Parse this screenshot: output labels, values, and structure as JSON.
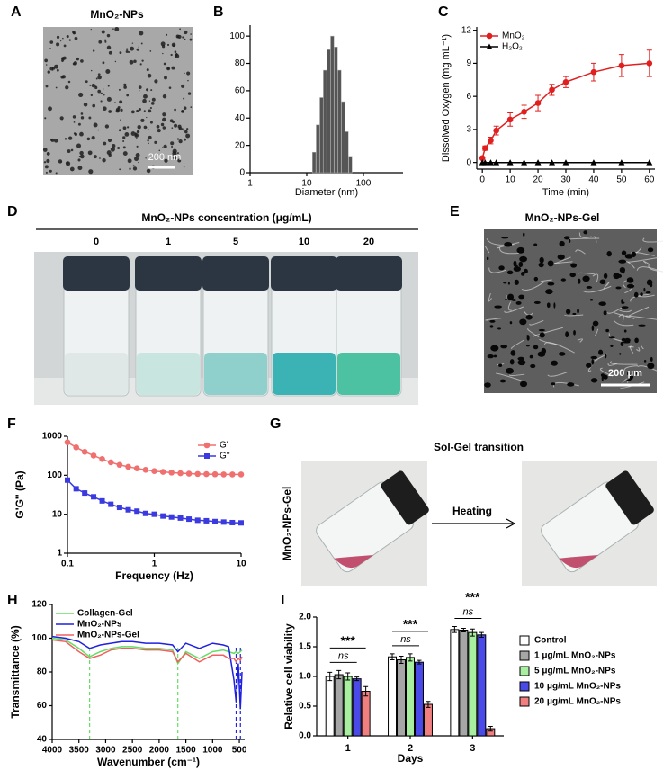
{
  "panel_letters": [
    "A",
    "B",
    "C",
    "D",
    "E",
    "F",
    "G",
    "H",
    "I"
  ],
  "photos": {
    "A": {
      "title": "MnO₂-NPs",
      "scale_bar": "200 nm"
    },
    "D": {
      "title": "MnO₂-NPs concentration (μg/mL)",
      "concentrations": [
        "0",
        "1",
        "5",
        "10",
        "20"
      ]
    },
    "E": {
      "title": "MnO₂-NPs-Gel",
      "scale_bar": "200 μm"
    },
    "G": {
      "title": "Sol-Gel transition",
      "side_label": "MnO₂-NPs-Gel",
      "arrow_label": "Heating"
    }
  },
  "chart_data": [
    {
      "type": "bar",
      "xlabel": "Diameter (nm)",
      "x": [
        13.5,
        15.7,
        18.2,
        21,
        24.4,
        28.2,
        32.7,
        37.8,
        43.8,
        50.7,
        58.8
      ],
      "values": [
        15,
        35,
        55,
        75,
        90,
        100,
        92,
        75,
        52,
        30,
        12
      ],
      "color": "#555555",
      "xlog": true,
      "xlim": [
        1,
        500
      ],
      "xticks": [
        1,
        10,
        100
      ],
      "ylim": [
        0,
        108
      ],
      "yticks": [
        0,
        20,
        40,
        60,
        80,
        100
      ]
    },
    {
      "type": "line",
      "xlabel": "Time (min)",
      "ylabel": "Dissolved Oxygen (mg mL⁻¹)",
      "x": [
        0,
        1,
        3,
        5,
        10,
        15,
        20,
        25,
        30,
        40,
        50,
        60
      ],
      "series": [
        {
          "name": "MnO₂",
          "color": "#e02020",
          "marker": "circle",
          "values": [
            0.4,
            1.3,
            2.0,
            2.9,
            3.9,
            4.6,
            5.4,
            6.6,
            7.3,
            8.2,
            8.8,
            9.0
          ],
          "errors": [
            0.1,
            0.2,
            0.3,
            0.4,
            0.6,
            0.6,
            0.7,
            0.5,
            0.5,
            0.8,
            1.0,
            1.2
          ]
        },
        {
          "name": "H₂O₂",
          "color": "#000000",
          "marker": "triangle",
          "values": [
            0,
            0,
            0,
            0,
            0,
            0,
            0,
            0,
            0,
            0,
            0,
            0
          ]
        }
      ],
      "xlim": [
        -2,
        62
      ],
      "xticks": [
        0,
        10,
        20,
        30,
        40,
        50,
        60
      ],
      "ylim": [
        -0.6,
        12.3
      ],
      "yticks": [
        0,
        3,
        6,
        9,
        12
      ],
      "legend": "upper left"
    },
    {
      "type": "line",
      "xlabel": "Frequency (Hz)",
      "ylabel": "G'G'' (Pa)",
      "x": [
        0.1,
        0.126,
        0.158,
        0.2,
        0.251,
        0.316,
        0.398,
        0.501,
        0.631,
        0.794,
        1,
        1.26,
        1.58,
        2,
        2.51,
        3.16,
        3.98,
        5.01,
        6.31,
        7.94,
        10
      ],
      "series": [
        {
          "name": "G'",
          "color": "#f07070",
          "marker": "circle",
          "values": [
            700,
            520,
            400,
            320,
            260,
            215,
            185,
            165,
            150,
            138,
            128,
            122,
            117,
            113,
            110,
            108,
            107,
            106,
            105,
            105,
            105
          ]
        },
        {
          "name": "G''",
          "color": "#3a3ae0",
          "marker": "square",
          "values": [
            75,
            45,
            35,
            28,
            22,
            18,
            15,
            13,
            12,
            10.5,
            10,
            9,
            8.5,
            8,
            7.5,
            7,
            6.8,
            6.5,
            6.3,
            6.1,
            6
          ]
        }
      ],
      "xlog": true,
      "ylog": true,
      "xlim": [
        0.1,
        10
      ],
      "xticks": [
        0.1,
        1,
        10
      ],
      "ylim": [
        1,
        1000
      ],
      "yticks": [
        1,
        10,
        100,
        1000
      ],
      "legend": "upper right"
    },
    {
      "type": "line",
      "xlabel": "Wavenumber (cm⁻¹)",
      "ylabel": "Transmittance (%)",
      "x": [
        4000,
        3750,
        3500,
        3300,
        3100,
        2900,
        2700,
        2500,
        2250,
        2000,
        1750,
        1650,
        1500,
        1250,
        1000,
        800,
        700,
        600,
        560,
        520,
        480,
        450
      ],
      "series": [
        {
          "name": "Collagen-Gel",
          "color": "#66dd66",
          "marker": "none",
          "values": [
            100,
            99,
            94,
            89,
            92,
            94,
            95,
            95,
            94,
            94,
            93,
            85,
            92,
            88,
            92,
            93,
            92,
            91,
            92,
            91,
            92,
            93
          ]
        },
        {
          "name": "MnO₂-NPs",
          "color": "#2020e0",
          "marker": "none",
          "values": [
            101,
            100,
            98,
            94,
            96,
            97,
            98,
            98,
            97,
            97,
            96,
            92,
            97,
            94,
            97,
            96,
            95,
            75,
            62,
            85,
            58,
            80
          ]
        },
        {
          "name": "MnO₂-NPs-Gel",
          "color": "#f06060",
          "marker": "none",
          "values": [
            99,
            98,
            92,
            88,
            90,
            93,
            94,
            94,
            93,
            93,
            92,
            86,
            91,
            86,
            90,
            90,
            88,
            88,
            86,
            88,
            87,
            89
          ]
        }
      ],
      "vlines": [
        {
          "value": 3300,
          "color": "#66dd66"
        },
        {
          "value": 1650,
          "color": "#66dd66"
        },
        {
          "value": 560,
          "color": "#2020e0"
        },
        {
          "value": 480,
          "color": "#2020e0"
        }
      ],
      "xlim": [
        4000,
        400
      ],
      "xticks": [
        4000,
        3500,
        3000,
        2500,
        2000,
        1500,
        1000,
        500
      ],
      "ylim": [
        40,
        120
      ],
      "yticks": [
        40,
        60,
        80,
        100,
        120
      ],
      "legend": "upper left"
    },
    {
      "type": "bar",
      "xlabel": "Days",
      "ylabel": "Relative cell viability",
      "categories": [
        "1",
        "2",
        "3"
      ],
      "series": [
        {
          "name": "Control",
          "color": "#ffffff",
          "values": [
            1.0,
            1.33,
            1.79
          ],
          "errors": [
            0.07,
            0.05,
            0.05
          ]
        },
        {
          "name": "1 μg/mL MnO₂-NPs",
          "color": "#a6a6a6",
          "values": [
            1.03,
            1.28,
            1.78
          ],
          "errors": [
            0.07,
            0.06,
            0.03
          ]
        },
        {
          "name": "5 μg/mL MnO₂-NPs",
          "color": "#a8f0a0",
          "values": [
            1.0,
            1.32,
            1.74
          ],
          "errors": [
            0.06,
            0.06,
            0.06
          ]
        },
        {
          "name": "10 μg/mL MnO₂-NPs",
          "color": "#4a4ae8",
          "values": [
            0.96,
            1.24,
            1.7
          ],
          "errors": [
            0.03,
            0.03,
            0.04
          ]
        },
        {
          "name": "20 μg/mL MnO₂-NPs",
          "color": "#f08080",
          "values": [
            0.75,
            0.53,
            0.12
          ],
          "errors": [
            0.08,
            0.05,
            0.04
          ]
        }
      ],
      "annotations": [
        [
          "***",
          "ns"
        ],
        [
          "***",
          "ns"
        ],
        [
          "***",
          "ns"
        ]
      ],
      "ylim": [
        0,
        2.0
      ],
      "yticks": [
        {
          "value": 0,
          "label": "0.0"
        },
        0.5,
        {
          "value": 1,
          "label": "1.0"
        },
        1.5,
        {
          "value": 2,
          "label": "2.0"
        }
      ],
      "legend": "right"
    }
  ]
}
